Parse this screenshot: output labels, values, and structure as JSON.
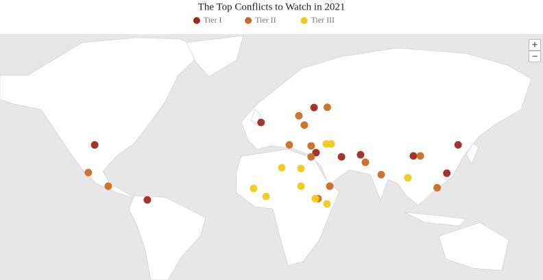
{
  "chart_data": {
    "type": "map",
    "title": "The Top Conflicts to Watch in 2021",
    "series": [
      {
        "name": "Tier I",
        "color": "#9e2a1f",
        "lon": [
          -98,
          5,
          37.8,
          39,
          54.8,
          66.6,
          99.3,
          127,
          120,
          -65.4
        ],
        "lat": [
          38,
          48.1,
          53.9,
          34.1,
          31.9,
          33,
          32.4,
          38,
          22.9,
          7
        ]
      },
      {
        "name": "Tier II",
        "color": "#c96d26",
        "lon": [
          46,
          28.4,
          31.8,
          22.5,
          36,
          36,
          69.6,
          79.4,
          103.6,
          114,
          -101.9,
          -89.6,
          47.5,
          40.3
        ],
        "lat": [
          54,
          50.8,
          47,
          38,
          37.5,
          31.9,
          29,
          22.1,
          32.4,
          14.4,
          23.3,
          15.3,
          15.3,
          7.8
        ]
      },
      {
        "name": "Tier III",
        "color": "#f2c81d",
        "lon": [
          45.4,
          48.4,
          17.8,
          29.7,
          0.4,
          8.1,
          29.7,
          38.6,
          45.8,
          95.9
        ],
        "lat": [
          38.5,
          38.5,
          26,
          25.6,
          14,
          9.1,
          15.3,
          7.8,
          4.5,
          20.3
        ]
      }
    ]
  },
  "controls": {
    "zoom_in": "+",
    "zoom_out": "−"
  }
}
